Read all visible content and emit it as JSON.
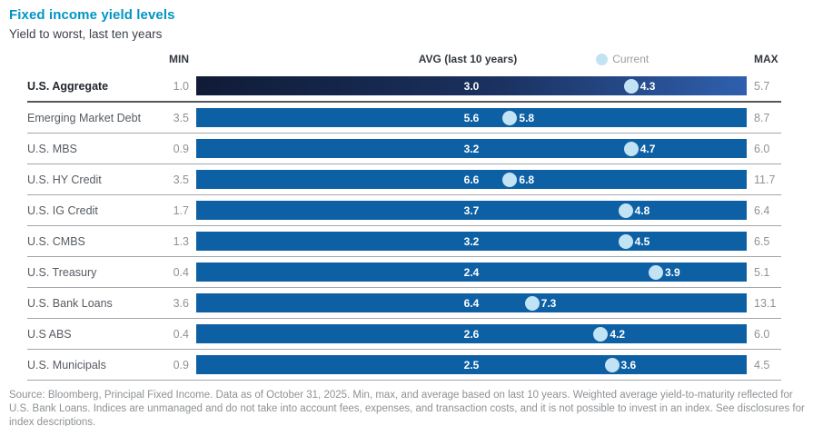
{
  "header": {
    "title": "Fixed income yield levels",
    "subtitle": "Yield to worst, last ten years"
  },
  "columns": {
    "min": "MIN",
    "avg": "AVG (last 10 years)",
    "legend_current": "Current",
    "max": "MAX"
  },
  "colors": {
    "title_teal": "#0094c4",
    "bar_blue": "#0e60a4",
    "highlight_bar_dark": "#101b36",
    "highlight_bar_light": "#2f60ae",
    "current_dot": "#c1e3f4",
    "header_text": "#33383f",
    "muted_text": "#8e9297",
    "separator": "#a2a5a9",
    "separator_dark": "#54575b"
  },
  "chart_data": {
    "type": "bar",
    "title": "Fixed income yield levels",
    "subtitle": "Yield to worst, last ten years",
    "unit": "yield percent",
    "legend": [
      "AVG (last 10 years)",
      "Current"
    ],
    "note": "Each bar spans MIN to MAX of last 10 years; AVG printed at bar center; light-blue dot marks current yield (dot_pct = dot position as % of bar width read from image)",
    "rows": [
      {
        "label": "U.S. Aggregate",
        "min": 1.0,
        "avg": 3.0,
        "current": 4.3,
        "max": 5.7,
        "dot_pct": 79,
        "highlight": true
      },
      {
        "label": "Emerging Market Debt",
        "min": 3.5,
        "avg": 5.6,
        "current": 5.8,
        "max": 8.7,
        "dot_pct": 57,
        "highlight": false
      },
      {
        "label": "U.S. MBS",
        "min": 0.9,
        "avg": 3.2,
        "current": 4.7,
        "max": 6.0,
        "dot_pct": 79,
        "highlight": false
      },
      {
        "label": "U.S. HY Credit",
        "min": 3.5,
        "avg": 6.6,
        "current": 6.8,
        "max": 11.7,
        "dot_pct": 57,
        "highlight": false
      },
      {
        "label": "U.S. IG Credit",
        "min": 1.7,
        "avg": 3.7,
        "current": 4.8,
        "max": 6.4,
        "dot_pct": 78,
        "highlight": false
      },
      {
        "label": "U.S. CMBS",
        "min": 1.3,
        "avg": 3.2,
        "current": 4.5,
        "max": 6.5,
        "dot_pct": 78,
        "highlight": false
      },
      {
        "label": "U.S. Treasury",
        "min": 0.4,
        "avg": 2.4,
        "current": 3.9,
        "max": 5.1,
        "dot_pct": 83.5,
        "highlight": false
      },
      {
        "label": "U.S. Bank Loans",
        "min": 3.6,
        "avg": 6.4,
        "current": 7.3,
        "max": 13.1,
        "dot_pct": 61,
        "highlight": false
      },
      {
        "label": "U.S ABS",
        "min": 0.4,
        "avg": 2.6,
        "current": 4.2,
        "max": 6.0,
        "dot_pct": 73.5,
        "highlight": false
      },
      {
        "label": "U.S. Municipals",
        "min": 0.9,
        "avg": 2.5,
        "current": 3.6,
        "max": 4.5,
        "dot_pct": 75.5,
        "highlight": false
      }
    ]
  },
  "footer": {
    "text": "Source: Bloomberg, Principal Fixed Income. Data as of October 31, 2025. Min, max, and average based on last 10 years. Weighted average yield-to-maturity reflected for U.S. Bank Loans. Indices are unmanaged and do not take into account fees, expenses, and transaction costs, and it is not possible to invest in an index. See disclosures for index descriptions."
  }
}
